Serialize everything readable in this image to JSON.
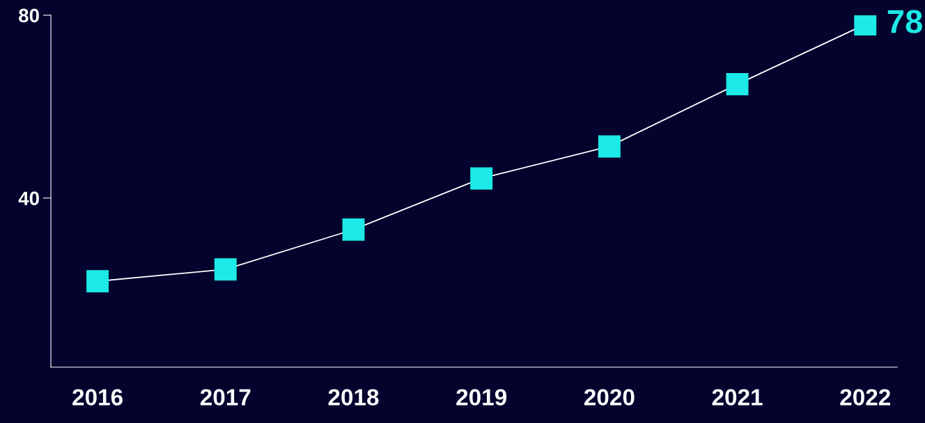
{
  "chart_data": {
    "type": "line",
    "categories": [
      "2016",
      "2017",
      "2018",
      "2019",
      "2020",
      "2021",
      "2022"
    ],
    "series": [
      {
        "color": "#1de9e6",
        "values": [
          21.8,
          24.4,
          33.1,
          44.3,
          51.3,
          64.9,
          78
        ],
        "value_labels": [
          null,
          null,
          null,
          null,
          null,
          null,
          "78"
        ]
      }
    ],
    "ylim": [
      3,
      80
    ],
    "yticks": [
      40,
      80
    ],
    "marker": "square",
    "line_style": "solid",
    "grid": false,
    "legend": false
  }
}
